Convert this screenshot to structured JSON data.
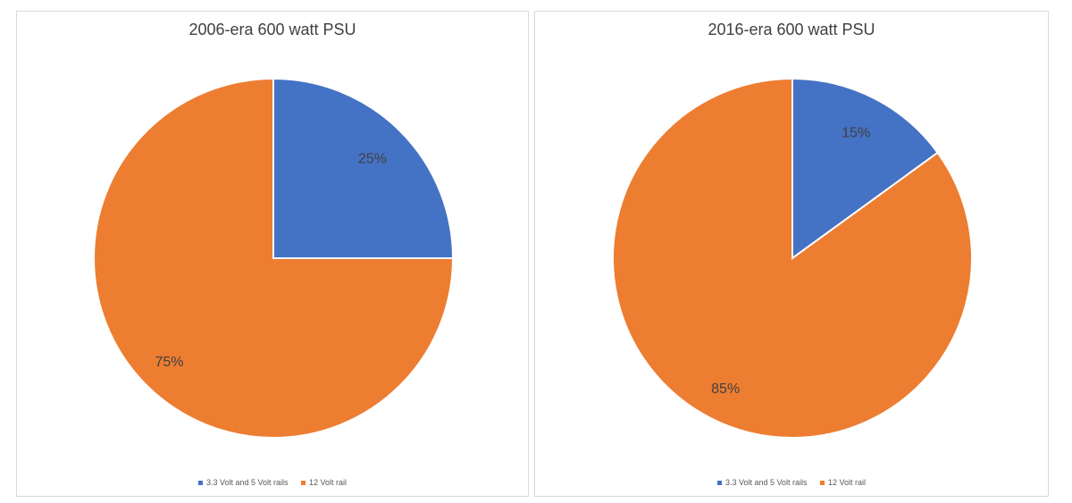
{
  "chart_data": [
    {
      "type": "pie",
      "title": "2006-era 600 watt PSU",
      "categories": [
        "3.3 Volt and 5 Volt rails",
        "12 Volt rail"
      ],
      "values": [
        25,
        75
      ],
      "data_labels": [
        "25%",
        "75%"
      ],
      "colors": [
        "#4472c4",
        "#ed7d31"
      ],
      "legend": "bottom"
    },
    {
      "type": "pie",
      "title": "2016-era 600 watt PSU",
      "categories": [
        "3.3 Volt and 5 Volt rails",
        "12 Volt rail"
      ],
      "values": [
        15,
        85
      ],
      "data_labels": [
        "15%",
        "85%"
      ],
      "colors": [
        "#4472c4",
        "#ed7d31"
      ],
      "legend": "bottom"
    }
  ]
}
